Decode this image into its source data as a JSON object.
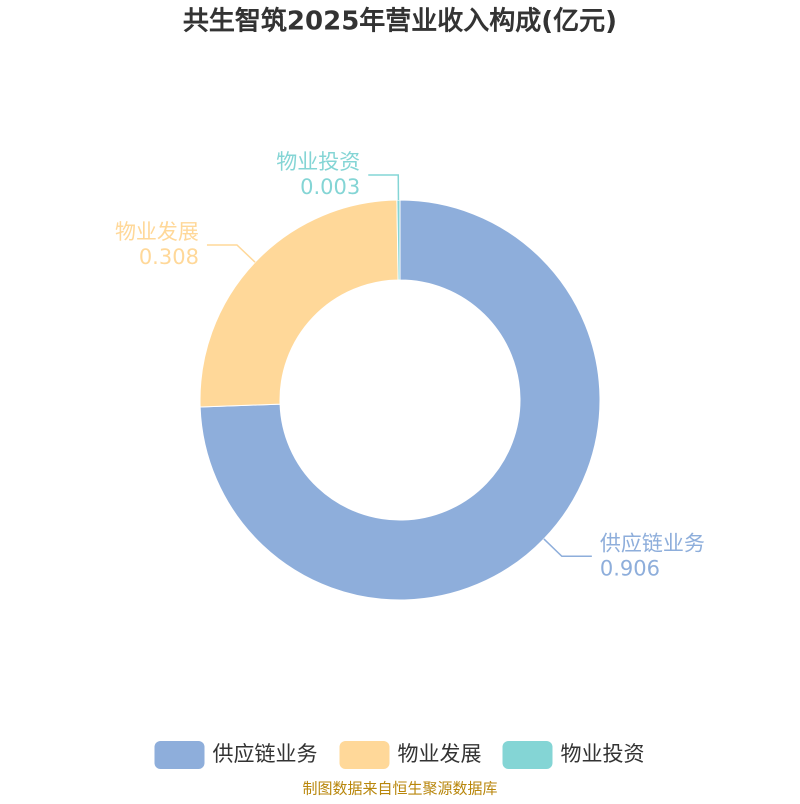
{
  "chart_data": {
    "type": "donut",
    "title": "共生智筑2025年营业收入构成(亿元)",
    "categories": [
      "供应链业务",
      "物业发展",
      "物业投资"
    ],
    "values": [
      0.906,
      0.308,
      0.003
    ],
    "colors": [
      "#8eaedb",
      "#ffd899",
      "#84d5d5"
    ],
    "source": "制图数据来自恒生聚源数据库"
  }
}
